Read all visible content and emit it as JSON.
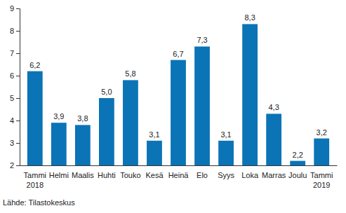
{
  "chart_data": {
    "type": "bar",
    "categories": [
      "Tammi\n2018",
      "Helmi",
      "Maalis",
      "Huhti",
      "Touko",
      "Kesä",
      "Heinä",
      "Elo",
      "Syys",
      "Loka",
      "Marras",
      "Joulu",
      "Tammi\n2019"
    ],
    "values": [
      6.2,
      3.9,
      3.8,
      5.0,
      5.8,
      3.1,
      6.7,
      7.3,
      3.1,
      8.3,
      4.3,
      2.2,
      3.2
    ],
    "value_labels": [
      "6,2",
      "3,9",
      "3,8",
      "5,0",
      "5,8",
      "3,1",
      "6,7",
      "7,3",
      "3,1",
      "8,3",
      "4,3",
      "2,2",
      "3,2"
    ],
    "data_labels": true,
    "color": "#0a74b7",
    "ylim": [
      2,
      9
    ],
    "yticks": [
      2,
      3,
      4,
      5,
      6,
      7,
      8,
      9
    ],
    "grid": false,
    "source": "Lähde: Tilastokeskus"
  }
}
